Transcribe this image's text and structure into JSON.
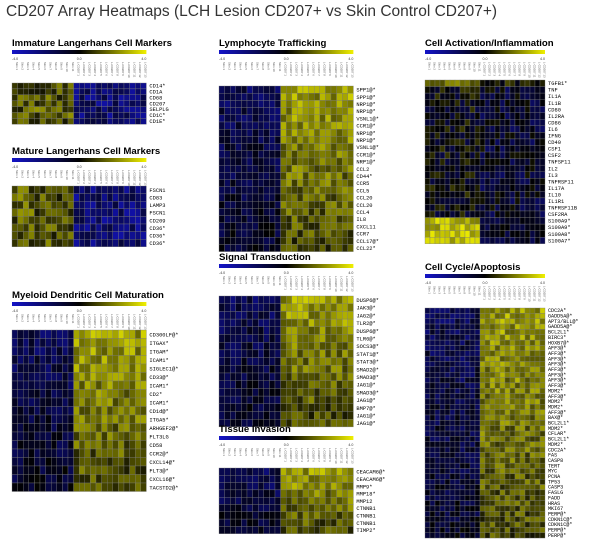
{
  "title": "CD207 Array Heatmaps (LCH Lesion CD207+ vs Skin Control CD207+)",
  "colors": {
    "low": "#1414c8",
    "mid": "#000000",
    "high": "#f0f000",
    "grid": "#7a7a7a"
  },
  "scale": {
    "min_label": "-4.0",
    "mid_label": "0.0",
    "max_label": "4.0",
    "min": -4,
    "max": 4
  },
  "samples": [
    "Skin 1",
    "Skin 2",
    "Skin 3",
    "Skin 4",
    "Skin 5",
    "Skin 6",
    "Skin 7",
    "Skin 8",
    "Skin 9",
    "Skin 10",
    "Skin 11",
    "L-CD207 1",
    "L-CD207 2",
    "L-CD207 3",
    "L-CD207 4",
    "L-CD207 5",
    "L-CD207 6",
    "L-CD207 7",
    "L-CD207 8",
    "L-CD207 9",
    "L-CD207 10",
    "L-CD207 11",
    "L-CD207 12",
    "L-CD207 13"
  ],
  "chart_data": [
    {
      "type": "heatmap",
      "title": "Immature Langerhans Cell Markers",
      "genes": [
        "CD14*",
        "CD1A",
        "CD68",
        "CD207",
        "SELPLG",
        "CD1C*",
        "CD1E*"
      ],
      "pattern": "down"
    },
    {
      "type": "heatmap",
      "title": "Mature Langerhans Cell Markers",
      "genes": [
        "FSCN1",
        "CD83",
        "LAMP3",
        "FSCN1",
        "CD209",
        "CD36*",
        "CD36*",
        "CD36*"
      ],
      "pattern": "down"
    },
    {
      "type": "heatmap",
      "title": "Myeloid Dendritic Cell Maturation",
      "genes": [
        "CD300LF@*",
        "ITGAX*",
        "ITGAM*",
        "ICAM1*",
        "SIGLEC1@*",
        "CD33@*",
        "ICAM1*",
        "CD2*",
        "ICAM1*",
        "CD1d@*",
        "ITGA5*",
        "ARHGEF2@*",
        "FLT3LG",
        "CD58",
        "CCR2@*",
        "CXCL14@*",
        "FLT3@*",
        "CXCL16@*",
        "TACSTD2@*"
      ],
      "pattern": "up"
    },
    {
      "type": "heatmap",
      "title": "Lymphocyte Trafficking",
      "genes": [
        "SPP1@*",
        "SPP1@*",
        "NRP1@*",
        "NRP1@*",
        "VSNL1@*",
        "CCR1@*",
        "NRP1@*",
        "NRP1@*",
        "VSNL1@*",
        "CCR1@*",
        "NRP1@*",
        "CCL2",
        "CD44*",
        "CCR5",
        "CCL5",
        "CCL20",
        "CCL20",
        "CCL4",
        "IL8",
        "CXCL11",
        "CCR7",
        "CCL17@*",
        "CCL22*"
      ],
      "pattern": "up"
    },
    {
      "type": "heatmap",
      "title": "Signal Transduction",
      "genes": [
        "DUSP6@*",
        "JAK3@*",
        "JAG2@*",
        "TLR2@*",
        "DUSP6@*",
        "TLR6@*",
        "SOCS3@*",
        "STAT1@*",
        "STAT3@*",
        "SMAD2@*",
        "SMAD3@*",
        "JAG1@*",
        "SMAD3@*",
        "JAG1@*",
        "BMP7@*",
        "JAG1@*",
        "JAG1@*"
      ],
      "pattern": "up"
    },
    {
      "type": "heatmap",
      "title": "Tissue Invasion",
      "genes": [
        "CEACAM6@*",
        "CEACAM6@*",
        "MMP9*",
        "MMP18*",
        "MMP12",
        "CTNNB1",
        "CTNNB1",
        "CTNNB1",
        "TIMP2*"
      ],
      "pattern": "up"
    },
    {
      "type": "heatmap",
      "title": "Cell Activation/Inflammation",
      "genes": [
        "TGFB1*",
        "TNF",
        "IL1A",
        "IL1B",
        "CD80",
        "IL2RA",
        "CD86",
        "IL6",
        "IFNG",
        "CD40",
        "CSF1",
        "CSF2",
        "TNFSF11",
        "IL2",
        "IL3",
        "TNFRSF11",
        "IL17A",
        "IL10",
        "IL1R1",
        "TNFRSF11B",
        "CSF2RA",
        "S100A9*",
        "S100A9*",
        "S100A8*",
        "S100A7*"
      ],
      "pattern": "mixed"
    },
    {
      "type": "heatmap",
      "title": "Cell Cycle/Apoptosis",
      "genes": [
        "CDC2A*",
        "GADD5A@*",
        "APT3/BLL@*",
        "GADD5A@*",
        "BCL2L1*",
        "BIRC3*",
        "HOXB7@*",
        "AFF3@*",
        "AFF3@*",
        "AFF3@*",
        "AFF3@*",
        "AFF3@*",
        "AFF3@*",
        "AFF3@*",
        "AFF3@*",
        "MDM2*",
        "AFF3@*",
        "MDM2*",
        "MDM2*",
        "AFF3@*",
        "BAX@*",
        "BCL2L1*",
        "MDM2*",
        "CFLAR*",
        "BCL2L1*",
        "MDM2*",
        "CDC2A*",
        "FAS",
        "CASP8",
        "TERT",
        "MYC",
        "PCNA",
        "TP53",
        "CASP3",
        "FASLG",
        "FADD",
        "HRAS",
        "MKI67",
        "PERP@*",
        "CDKN1C@*",
        "CDKN1C@*",
        "PERP@*",
        "PERP@*"
      ],
      "pattern": "up"
    }
  ]
}
